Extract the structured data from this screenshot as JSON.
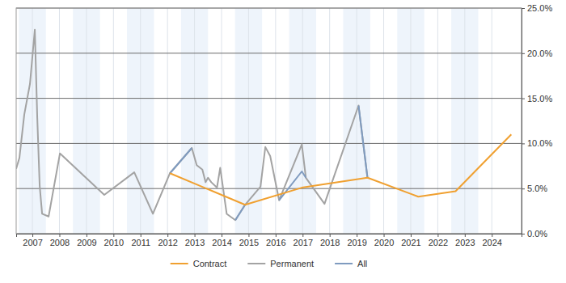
{
  "chart_data": {
    "type": "line",
    "xlim": [
      2006.4,
      2025.1
    ],
    "xticks": [
      2007,
      2008,
      2009,
      2010,
      2011,
      2012,
      2013,
      2014,
      2015,
      2016,
      2017,
      2018,
      2019,
      2020,
      2021,
      2022,
      2023,
      2024
    ],
    "ylim": [
      0,
      25
    ],
    "yticks": [
      {
        "value": 0,
        "label": "0.0%"
      },
      {
        "value": 5,
        "label": "5.0%"
      },
      {
        "value": 10,
        "label": "10.0%"
      },
      {
        "value": 15,
        "label": "15.0%"
      },
      {
        "value": 20,
        "label": "20.0%"
      },
      {
        "value": 25,
        "label": "25.0%"
      }
    ],
    "grid": true,
    "legend": "bottom",
    "series": [
      {
        "name": "Permanent",
        "color": "#a3a3a3",
        "x": [
          2006.4,
          2006.52,
          2006.7,
          2006.91,
          2007.09,
          2007.18,
          2007.27,
          2007.36,
          2007.6,
          2008.02,
          2009.66,
          2010.77,
          2011.46,
          2012.09,
          2012.9,
          2013.08,
          2013.29,
          2013.41,
          2013.5,
          2013.62,
          2013.83,
          2013.95,
          2014.19,
          2014.51,
          2014.87,
          2015.44,
          2015.62,
          2015.8,
          2016.13,
          2016.97,
          2017.12,
          2017.81,
          2019.07,
          2019.4
        ],
        "values": [
          7.2,
          8.4,
          13.2,
          16.6,
          22.6,
          12.9,
          5.3,
          2.2,
          1.9,
          8.9,
          4.3,
          6.8,
          2.2,
          6.7,
          9.5,
          7.6,
          7.1,
          5.7,
          6.2,
          5.7,
          5.1,
          7.3,
          2.2,
          1.5,
          3.2,
          5.2,
          9.6,
          8.6,
          3.7,
          9.9,
          6.2,
          3.3,
          14.2,
          6.2
        ]
      },
      {
        "name": "All",
        "color": "#7f9bbf",
        "x": [
          2012.09,
          2012.9,
          2013.5,
          2014.51,
          2014.87,
          2015.5,
          2016.13,
          2016.97,
          2017.12,
          2018.0,
          2019.07,
          2019.4
        ],
        "values": [
          6.7,
          9.5,
          null,
          1.5,
          3.2,
          null,
          3.7,
          6.9,
          6.2,
          null,
          14.2,
          6.2
        ]
      },
      {
        "name": "Contract",
        "color": "#f0a030",
        "x": [
          2012.09,
          2014.87,
          2016.97,
          2019.4,
          2021.28,
          2022.66,
          2024.72
        ],
        "values": [
          6.7,
          3.2,
          5.1,
          6.2,
          4.1,
          4.7,
          11.0
        ]
      }
    ]
  }
}
